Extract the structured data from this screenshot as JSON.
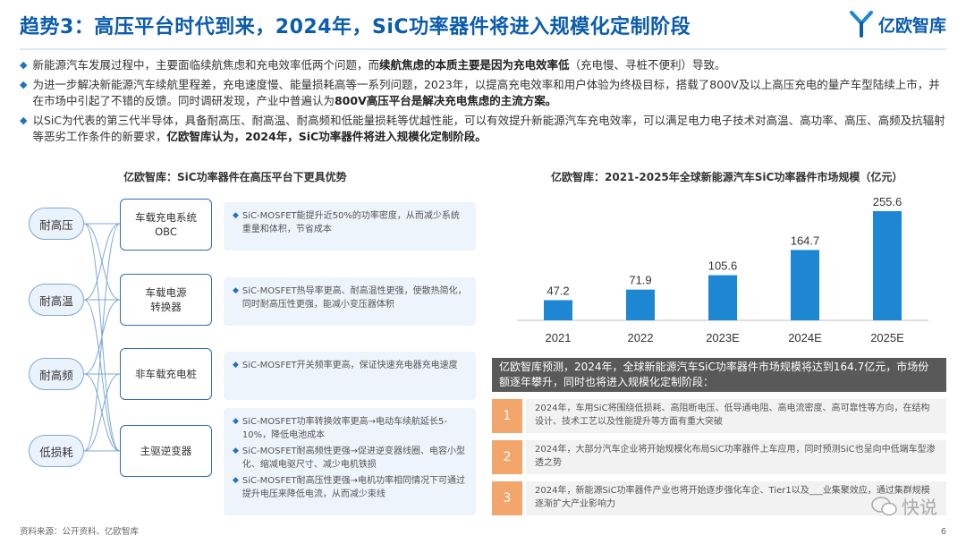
{
  "header": {
    "title": "趋势3：高压平台时代到来，2024年，SiC功率器件将进入规模化定制阶段",
    "logo_text": "亿欧智库",
    "logo_icon": "yiou-logo-icon"
  },
  "bullets": [
    {
      "pre": "新能源汽车发展过程中，主要面临续航焦虑和充电效率低两个问题，而",
      "bold": "续航焦虑的本质主要是因为充电效率低",
      "post": "（充电慢、寻桩不便利）导致。"
    },
    {
      "pre": "为进一步解决新能源汽车续航里程差，充电速度慢、能量损耗高等一系列问题，2023年，以提高充电效率和用户体验为终极目标，搭载了800V及以上高压充电的量产车型陆续上市，并在市场中引起了不错的反馈。同时调研发现，产业中普遍认为",
      "bold": "800V高压平台是解决充电焦虑的主流方案。",
      "post": ""
    },
    {
      "pre": "以SiC为代表的第三代半导体，具备耐高压、耐高温、耐高频和低能量损耗等优越性能，可以有效提升新能源汽车充电效率，可以满足电力电子技术对高温、高功率、高压、高频及抗辐射等恶劣工作条件的新要求，",
      "bold": "亿欧智库认为，2024年，SiC功率器件将进入规模化定制阶段。",
      "post": ""
    }
  ],
  "left_panel": {
    "title": "亿欧智库：SiC功率器件在高压平台下更具优势",
    "properties": [
      "耐高压",
      "耐高温",
      "耐高频",
      "低损耗"
    ],
    "applications": [
      "车载充电系统\nOBC",
      "车载电源\n转换器",
      "非车载充电桩",
      "主驱逆变器"
    ],
    "descriptions": [
      [
        "SiC-MOSFET能提升近50%的功率密度，从而减少系统重量和体积，节省成本"
      ],
      [
        "SiC-MOSFET热导率更高、耐高温性更强，使散热简化，同时耐高压性更强，能减小变压器体积"
      ],
      [
        "SiC-MOSFET开关频率更高，保证快速充电器充电速度"
      ],
      [
        "SiC-MOSFET功率转换效率更高→电动车续航延长5-10%，降低电池成本",
        "SiC-MOSFET耐高频性更强→促进逆变器线圈、电容小型化、缩减电驱尺寸、减少电机铁损",
        "SiC-MOSFET耐高压性更强→电机功率相同情况下可通过提升电压来降低电流，从而减少束线"
      ]
    ]
  },
  "chart_data": {
    "type": "bar",
    "title": "亿欧智库：2021-2025年全球新能源汽车SiC功率器件市场规模（亿元）",
    "categories": [
      "2021",
      "2022",
      "2023E",
      "2024E",
      "2025E"
    ],
    "values": [
      47.2,
      71.9,
      105.6,
      164.7,
      255.6
    ],
    "value_labels": [
      "47.2",
      "71.9",
      "105.6",
      "164.7",
      "255.6"
    ],
    "bar_color": "#1e87d4",
    "ylim": [
      0,
      255.6
    ],
    "grid": false,
    "legend": "none"
  },
  "forecast": {
    "summary": "亿欧智库预测，2024年，全球新能源汽车SiC功率器件市场规模将达到164.7亿元，市场份额逐年攀升，同时也将进入规模化定制阶段：",
    "items": [
      {
        "num": "1",
        "text": "2024年，车用SiC将围绕低损耗、高阻断电压、低导通电阻、高电流密度、高可靠性等方向，在结构设计、技术工艺以及性能提升等方面有重大突破"
      },
      {
        "num": "2",
        "text": "2024年，大部分汽车企业将开始规模化布局SiC功率器件上车应用，同时预测SiC也呈向中低端车型渗透之势"
      },
      {
        "num": "3",
        "text": "2024年，新能源SiC功率器件产业也将开始逐步强化车企、Tier1以及___业集聚效应，通过集群规模逐渐扩大产业影响力"
      }
    ]
  },
  "footer": {
    "source": "资料来源：公开资料、亿欧智库",
    "page": "6",
    "watermark_text": "快说",
    "watermark_icon": "wechat-icon"
  }
}
